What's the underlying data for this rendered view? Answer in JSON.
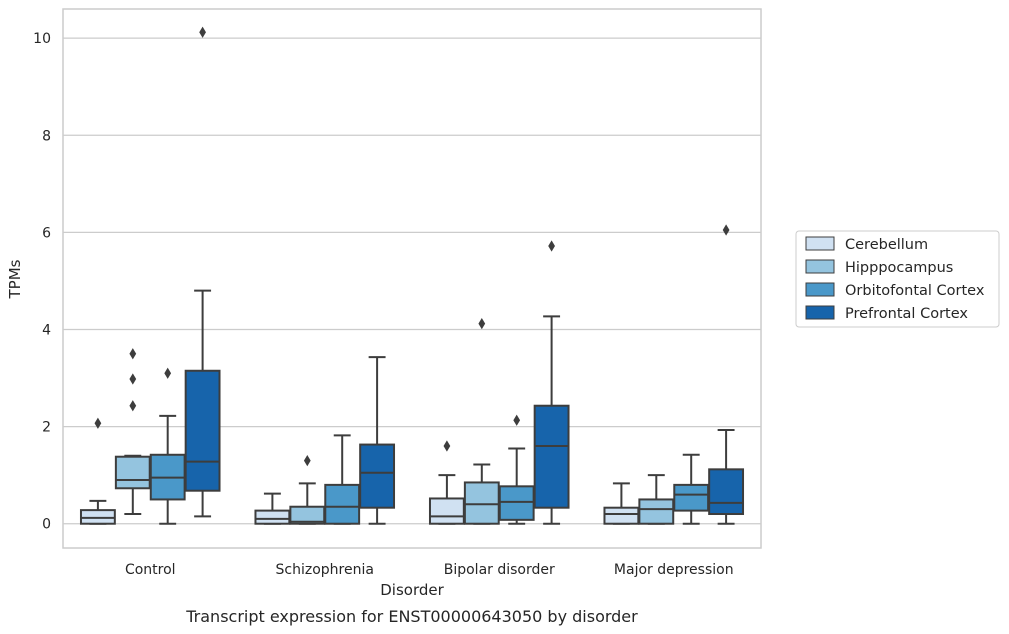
{
  "chart_data": {
    "type": "boxplot",
    "caption": "Transcript expression for ENST00000643050 by disorder",
    "xlabel": "Disorder",
    "ylabel": "TPMs",
    "ylim": [
      -0.5,
      10.6
    ],
    "yticks": [
      0,
      2,
      4,
      6,
      8,
      10
    ],
    "grid": true,
    "legend_position": "right",
    "categories": [
      "Control",
      "Schizophrenia",
      "Bipolar disorder",
      "Major depression"
    ],
    "series": [
      {
        "name": "Cerebellum",
        "color": "#d0e1f2",
        "boxes": [
          {
            "whislo": 0,
            "q1": 0,
            "med": 0.12,
            "q3": 0.28,
            "whishi": 0.47,
            "fliers": [
              2.07
            ]
          },
          {
            "whislo": 0,
            "q1": 0,
            "med": 0.1,
            "q3": 0.27,
            "whishi": 0.62,
            "fliers": []
          },
          {
            "whislo": 0,
            "q1": 0,
            "med": 0.15,
            "q3": 0.52,
            "whishi": 1.0,
            "fliers": [
              1.6
            ]
          },
          {
            "whislo": 0,
            "q1": 0,
            "med": 0.2,
            "q3": 0.33,
            "whishi": 0.83,
            "fliers": []
          }
        ]
      },
      {
        "name": "Hipppocampus",
        "color": "#94c4df",
        "boxes": [
          {
            "whislo": 0.2,
            "q1": 0.73,
            "med": 0.9,
            "q3": 1.38,
            "whishi": 1.4,
            "fliers": [
              2.43,
              2.98,
              3.5
            ]
          },
          {
            "whislo": 0,
            "q1": 0,
            "med": 0.04,
            "q3": 0.35,
            "whishi": 0.83,
            "fliers": [
              1.3
            ]
          },
          {
            "whislo": 0,
            "q1": 0,
            "med": 0.4,
            "q3": 0.85,
            "whishi": 1.22,
            "fliers": [
              4.12
            ]
          },
          {
            "whislo": 0,
            "q1": 0,
            "med": 0.3,
            "q3": 0.5,
            "whishi": 1.0,
            "fliers": []
          }
        ]
      },
      {
        "name": "Orbitofontal Cortex",
        "color": "#4a98c9",
        "boxes": [
          {
            "whislo": 0,
            "q1": 0.5,
            "med": 0.95,
            "q3": 1.42,
            "whishi": 2.22,
            "fliers": [
              3.1
            ]
          },
          {
            "whislo": 0,
            "q1": 0,
            "med": 0.35,
            "q3": 0.8,
            "whishi": 1.82,
            "fliers": []
          },
          {
            "whislo": 0,
            "q1": 0.08,
            "med": 0.45,
            "q3": 0.77,
            "whishi": 1.55,
            "fliers": [
              2.13
            ]
          },
          {
            "whislo": 0,
            "q1": 0.27,
            "med": 0.6,
            "q3": 0.8,
            "whishi": 1.42,
            "fliers": []
          }
        ]
      },
      {
        "name": "Prefrontal Cortex",
        "color": "#1764ab",
        "boxes": [
          {
            "whislo": 0.15,
            "q1": 0.68,
            "med": 1.28,
            "q3": 3.15,
            "whishi": 4.8,
            "fliers": [
              10.12
            ]
          },
          {
            "whislo": 0,
            "q1": 0.33,
            "med": 1.05,
            "q3": 1.63,
            "whishi": 3.43,
            "fliers": []
          },
          {
            "whislo": 0,
            "q1": 0.33,
            "med": 1.6,
            "q3": 2.43,
            "whishi": 4.27,
            "fliers": [
              5.72
            ]
          },
          {
            "whislo": 0,
            "q1": 0.2,
            "med": 0.43,
            "q3": 1.12,
            "whishi": 1.93,
            "fliers": [
              6.05
            ]
          }
        ]
      }
    ]
  }
}
